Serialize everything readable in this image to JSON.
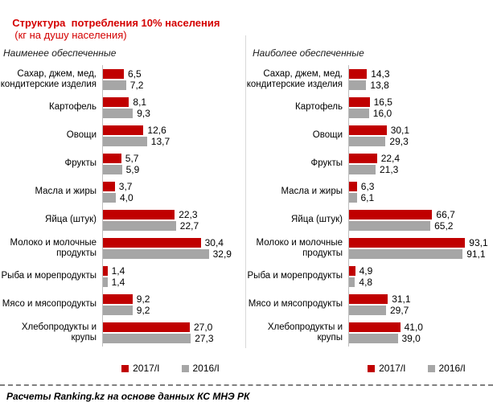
{
  "title": {
    "main": "Структура  потребления 10% населения",
    "suffix": "(кг на душу населения)"
  },
  "footer": "Расчеты Ranking.kz на основе данных КС МНЭ РК",
  "colors": {
    "series_2017": "#C00000",
    "series_2016": "#A6A6A6",
    "title": "#D40000",
    "axis": "#BFBFBF",
    "divider": "#D9D9D9",
    "dash": "#7F7F7F"
  },
  "chart_data": [
    {
      "type": "bar",
      "orientation": "horizontal",
      "title": "Наименее обеспеченные",
      "categories": [
        "Сахар, джем, мед,\nкондитерские изделия",
        "Картофель",
        "Овощи",
        "Фрукты",
        "Масла и жиры",
        "Яйца (штук)",
        "Молоко и молочные\nпродукты",
        "Рыба и морепродукты",
        "Мясо и мясопродукты",
        "Хлебопродукты и крупы"
      ],
      "series": [
        {
          "name": "2017/I",
          "values": [
            6.5,
            8.1,
            12.6,
            5.7,
            3.7,
            22.3,
            30.4,
            1.4,
            9.2,
            27.0
          ]
        },
        {
          "name": "2016/I",
          "values": [
            7.2,
            9.3,
            13.7,
            5.9,
            4.0,
            22.7,
            32.9,
            1.4,
            9.2,
            27.3
          ]
        }
      ],
      "xlim": [
        0,
        40
      ],
      "value_labels": true,
      "grid": false,
      "legend_position": "bottom"
    },
    {
      "type": "bar",
      "orientation": "horizontal",
      "title": "Наиболее обеспеченные",
      "categories": [
        "Сахар, джем, мед,\nкондитерские изделия",
        "Картофель",
        "Овощи",
        "Фрукты",
        "Масла и жиры",
        "Яйца (штук)",
        "Молоко и молочные\nпродукты",
        "Рыба и морепродукты",
        "Мясо и мясопродукты",
        "Хлебопродукты и крупы"
      ],
      "series": [
        {
          "name": "2017/I",
          "values": [
            14.3,
            16.5,
            30.1,
            22.4,
            6.3,
            66.7,
            93.1,
            4.9,
            31.1,
            41.0
          ]
        },
        {
          "name": "2016/I",
          "values": [
            13.8,
            16.0,
            29.3,
            21.3,
            6.1,
            65.2,
            91.1,
            4.8,
            29.7,
            39.0
          ]
        }
      ],
      "xlim": [
        0,
        100
      ],
      "value_labels": true,
      "grid": false,
      "legend_position": "bottom"
    }
  ]
}
